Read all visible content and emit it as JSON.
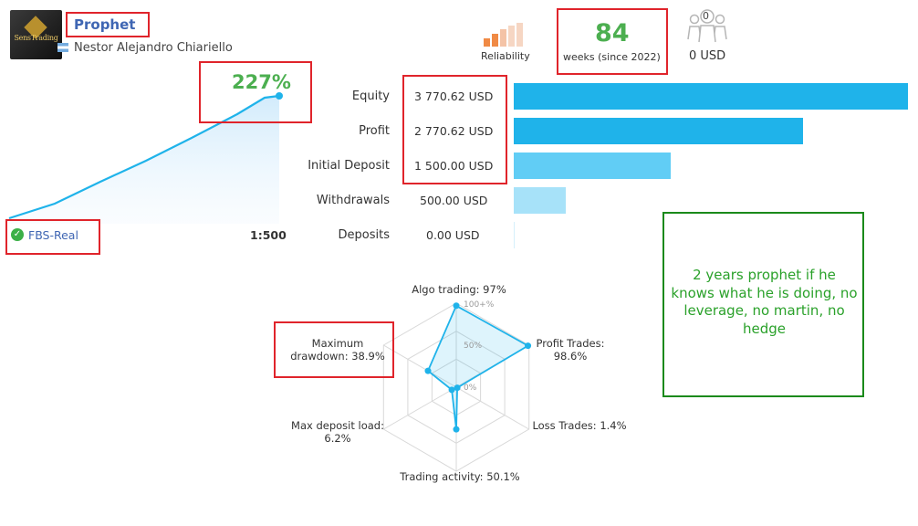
{
  "header": {
    "logo_text": "SensTrading",
    "title": "Prophet",
    "author": "Nestor Alejandro Chiariello"
  },
  "growth": {
    "percent": "227%",
    "account": "FBS-Real",
    "leverage": "1:500"
  },
  "stats": {
    "reliability_label": "Reliability",
    "weeks": "84",
    "weeks_label": "weeks (since 2022)",
    "subscribers": "0",
    "subscription_price": "0 USD"
  },
  "balances": [
    {
      "label": "Equity",
      "value": "3 770.62 USD",
      "amount": 3770.62
    },
    {
      "label": "Profit",
      "value": "2 770.62 USD",
      "amount": 2770.62
    },
    {
      "label": "Initial Deposit",
      "value": "1 500.00 USD",
      "amount": 1500.0
    },
    {
      "label": "Withdrawals",
      "value": "500.00 USD",
      "amount": 500.0
    },
    {
      "label": "Deposits",
      "value": "0.00 USD",
      "amount": 0.0
    }
  ],
  "radar": {
    "scale_labels": [
      "100+%",
      "50%",
      "0%"
    ],
    "axes": [
      {
        "label": "Algo trading: 97%",
        "value": 97
      },
      {
        "label": "Profit Trades: 98.6%",
        "value": 98.6
      },
      {
        "label": "Loss Trades: 1.4%",
        "value": 1.4
      },
      {
        "label": "Trading activity: 50.1%",
        "value": 50.1
      },
      {
        "label": "Max deposit load: 6.2%",
        "value": 6.2
      },
      {
        "label": "Maximum drawdown: 38.9%",
        "value": 38.9
      }
    ]
  },
  "note": "2 years prophet if he knows what he is doing, no leverage, no martin, no hedge",
  "colors": {
    "accent_blue": "#1fb3ea",
    "green": "#4caf50",
    "highlight_red": "#e0242b",
    "note_green": "#2aa12a"
  }
}
